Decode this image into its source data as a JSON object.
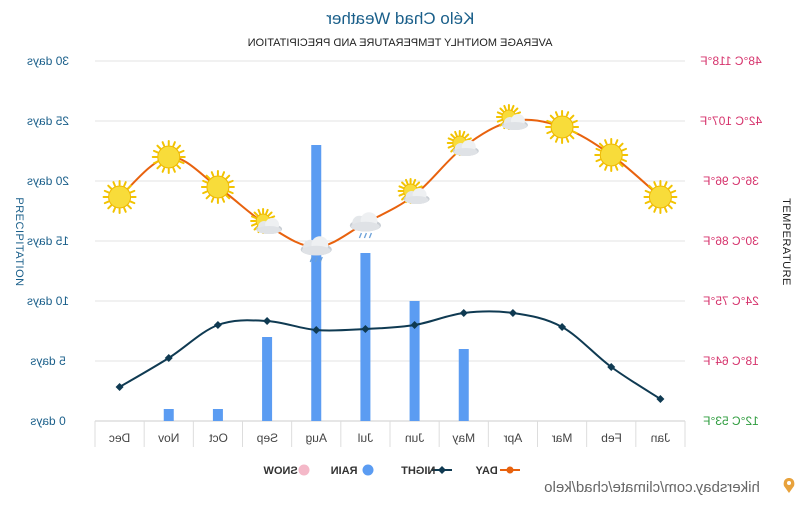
{
  "chart_data": {
    "type": "line",
    "mirrored": true,
    "title": "Kélo Chad Weather",
    "subtitle": "AVERAGE MONTHLY TEMPERATURE AND PRECIPITATION",
    "ylabel_left": "PRECIPITATION",
    "ylabel_right": "TEMPERATURE",
    "categories": [
      "Jan",
      "Feb",
      "Mar",
      "Apr",
      "May",
      "Jun",
      "Jul",
      "Aug",
      "Sep",
      "Oct",
      "Nov",
      "Dec"
    ],
    "left_axis": {
      "unit": "days",
      "ylim": [
        0,
        30
      ],
      "ticks": [
        "0 days",
        "5 days",
        "10 days",
        "15 days",
        "20 days",
        "25 days",
        "30 days"
      ],
      "tick_values": [
        0,
        5,
        10,
        15,
        20,
        25,
        30
      ]
    },
    "right_axis": {
      "unit": "°C",
      "ylim": [
        12,
        48
      ],
      "ticks": [
        "12°C 53°F",
        "18°C 64°F",
        "24°C 75°F",
        "30°C 86°F",
        "36°C 96°F",
        "42°C 107°F",
        "48°C 118°F"
      ],
      "tick_values": [
        12,
        18,
        24,
        30,
        36,
        42,
        48
      ]
    },
    "series": [
      {
        "name": "DAY",
        "unit": "°C",
        "color": "#e8620e",
        "values": [
          34.4,
          38.6,
          41.4,
          42,
          39.4,
          34.6,
          31.8,
          29.4,
          31.6,
          35.4,
          38.4,
          34.4
        ]
      },
      {
        "name": "NIGHT",
        "unit": "°C",
        "color": "#0f3a52",
        "values": [
          14.2,
          17.4,
          21.4,
          22.8,
          22.8,
          21.6,
          21.2,
          21.1,
          22,
          21.6,
          18.3,
          15.4
        ]
      },
      {
        "name": "RAIN",
        "unit": "days",
        "color": "#5b9cf2",
        "values": [
          0,
          0,
          0,
          0,
          6,
          10,
          14,
          23,
          7,
          1,
          1,
          0
        ]
      },
      {
        "name": "SNOW",
        "unit": "days",
        "color": "#f4b8c8",
        "values": [
          0,
          0,
          0,
          0,
          0,
          0,
          0,
          0,
          0,
          0,
          0,
          0
        ]
      }
    ],
    "weather_icons": [
      "sun-icon",
      "sun-icon",
      "sun-icon",
      "partly-cloudy-icon",
      "partly-cloudy-icon",
      "partly-cloudy-icon",
      "cloud-rain-icon",
      "cloud-rain-icon",
      "partly-cloudy-icon",
      "sun-icon",
      "sun-icon",
      "sun-icon"
    ],
    "legend": [
      "DAY",
      "NIGHT",
      "RAIN",
      "SNOW"
    ],
    "legend_position": "bottom",
    "grid": true
  },
  "credit": "hikersbay.com/climate/chad/kelo",
  "colors": {
    "title": "#1a5f8a",
    "left_ticks": "#1a5f8a",
    "right_ticks_hot": "#d6336c",
    "right_ticks_cool": "#2e9c3e",
    "grid": "#e3e3e3"
  }
}
